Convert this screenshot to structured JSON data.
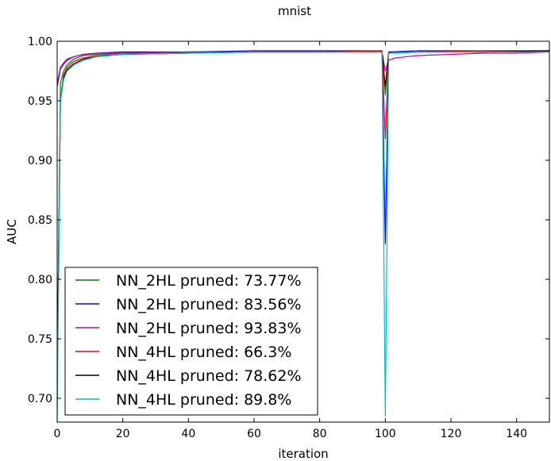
{
  "chart_data": {
    "type": "line",
    "title": "mnist",
    "xlabel": "iteration",
    "ylabel": "AUC",
    "xlim": [
      0,
      150
    ],
    "ylim": [
      0.68,
      1.0
    ],
    "xticks": [
      0,
      20,
      40,
      60,
      80,
      100,
      120,
      140
    ],
    "xtick_labels": [
      "0",
      "20",
      "40",
      "60",
      "80",
      "100",
      "120",
      "140"
    ],
    "yticks": [
      0.7,
      0.75,
      0.8,
      0.85,
      0.9,
      0.95,
      1.0
    ],
    "ytick_labels": [
      "0.70",
      "0.75",
      "0.80",
      "0.85",
      "0.90",
      "0.95",
      "1.00"
    ],
    "grid": false,
    "legend_position": "lower-left",
    "series": [
      {
        "name": "NN_2HL pruned: 73.77%",
        "color": "#008000",
        "points": [
          [
            0,
            0.7
          ],
          [
            1,
            0.965
          ],
          [
            2,
            0.975
          ],
          [
            3,
            0.98
          ],
          [
            5,
            0.985
          ],
          [
            8,
            0.988
          ],
          [
            12,
            0.989
          ],
          [
            20,
            0.99
          ],
          [
            40,
            0.991
          ],
          [
            60,
            0.991
          ],
          [
            80,
            0.991
          ],
          [
            99,
            0.992
          ],
          [
            100,
            0.955
          ],
          [
            101,
            0.99
          ],
          [
            110,
            0.991
          ],
          [
            130,
            0.991
          ],
          [
            150,
            0.992
          ]
        ]
      },
      {
        "name": "NN_2HL pruned: 83.56%",
        "color": "#0000ff",
        "points": [
          [
            0,
            0.962
          ],
          [
            1,
            0.977
          ],
          [
            2,
            0.981
          ],
          [
            3,
            0.984
          ],
          [
            5,
            0.987
          ],
          [
            8,
            0.989
          ],
          [
            12,
            0.99
          ],
          [
            20,
            0.991
          ],
          [
            40,
            0.991
          ],
          [
            60,
            0.992
          ],
          [
            80,
            0.992
          ],
          [
            99,
            0.992
          ],
          [
            100,
            0.83
          ],
          [
            101,
            0.991
          ],
          [
            110,
            0.992
          ],
          [
            130,
            0.992
          ],
          [
            150,
            0.992
          ]
        ]
      },
      {
        "name": "NN_2HL pruned: 93.83%",
        "color": "#bf00bf",
        "points": [
          [
            0,
            0.965
          ],
          [
            1,
            0.978
          ],
          [
            2,
            0.982
          ],
          [
            3,
            0.985
          ],
          [
            5,
            0.987
          ],
          [
            8,
            0.989
          ],
          [
            12,
            0.99
          ],
          [
            20,
            0.99
          ],
          [
            40,
            0.991
          ],
          [
            60,
            0.991
          ],
          [
            80,
            0.991
          ],
          [
            99,
            0.991
          ],
          [
            100,
            0.975
          ],
          [
            101,
            0.984
          ],
          [
            103,
            0.986
          ],
          [
            110,
            0.988
          ],
          [
            120,
            0.989
          ],
          [
            130,
            0.99
          ],
          [
            140,
            0.99
          ],
          [
            150,
            0.991
          ]
        ]
      },
      {
        "name": "NN_4HL pruned: 66.3%",
        "color": "#ff0000",
        "points": [
          [
            0,
            0.72
          ],
          [
            1,
            0.95
          ],
          [
            2,
            0.972
          ],
          [
            3,
            0.978
          ],
          [
            5,
            0.983
          ],
          [
            8,
            0.986
          ],
          [
            12,
            0.988
          ],
          [
            20,
            0.989
          ],
          [
            40,
            0.99
          ],
          [
            60,
            0.991
          ],
          [
            80,
            0.991
          ],
          [
            99,
            0.992
          ],
          [
            100,
            0.918
          ],
          [
            101,
            0.99
          ],
          [
            110,
            0.991
          ],
          [
            130,
            0.992
          ],
          [
            150,
            0.992
          ]
        ]
      },
      {
        "name": "NN_4HL pruned: 78.62%",
        "color": "#000000",
        "points": [
          [
            0,
            0.72
          ],
          [
            1,
            0.95
          ],
          [
            2,
            0.97
          ],
          [
            3,
            0.976
          ],
          [
            5,
            0.981
          ],
          [
            8,
            0.985
          ],
          [
            12,
            0.987
          ],
          [
            20,
            0.989
          ],
          [
            40,
            0.99
          ],
          [
            60,
            0.991
          ],
          [
            80,
            0.991
          ],
          [
            99,
            0.991
          ],
          [
            100,
            0.962
          ],
          [
            101,
            0.99
          ],
          [
            110,
            0.991
          ],
          [
            130,
            0.991
          ],
          [
            150,
            0.992
          ]
        ]
      },
      {
        "name": "NN_4HL pruned: 89.8%",
        "color": "#00bfbf",
        "points": [
          [
            0,
            0.68
          ],
          [
            1,
            0.95
          ],
          [
            2,
            0.968
          ],
          [
            3,
            0.975
          ],
          [
            5,
            0.98
          ],
          [
            8,
            0.984
          ],
          [
            12,
            0.987
          ],
          [
            20,
            0.989
          ],
          [
            40,
            0.99
          ],
          [
            60,
            0.991
          ],
          [
            80,
            0.991
          ],
          [
            99,
            0.991
          ],
          [
            100,
            0.685
          ],
          [
            101,
            0.99
          ],
          [
            110,
            0.991
          ],
          [
            130,
            0.991
          ],
          [
            150,
            0.991
          ]
        ]
      }
    ]
  }
}
